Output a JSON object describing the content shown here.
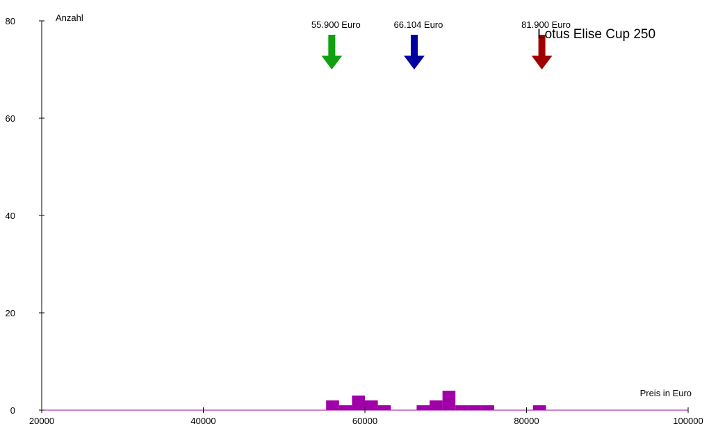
{
  "chart_data": {
    "type": "bar",
    "title": "Lotus Elise Cup 250",
    "xlabel": "Preis in Euro",
    "ylabel": "Anzahl",
    "xlim": [
      20000,
      100000
    ],
    "ylim": [
      0,
      80
    ],
    "x_ticks": [
      20000,
      40000,
      60000,
      80000,
      100000
    ],
    "y_ticks": [
      0,
      20,
      40,
      60,
      80
    ],
    "grid": false,
    "bin_width": 1600,
    "bar_color": "#a000a8",
    "axis_color": "#000000",
    "baseline_color": "#a000a8",
    "bins": [
      {
        "x": 56000,
        "value": 2
      },
      {
        "x": 57600,
        "value": 1
      },
      {
        "x": 59200,
        "value": 3
      },
      {
        "x": 60800,
        "value": 2
      },
      {
        "x": 62400,
        "value": 1
      },
      {
        "x": 67200,
        "value": 1
      },
      {
        "x": 68800,
        "value": 2
      },
      {
        "x": 70400,
        "value": 4
      },
      {
        "x": 72000,
        "value": 1
      },
      {
        "x": 73600,
        "value": 1
      },
      {
        "x": 75200,
        "value": 1
      },
      {
        "x": 81600,
        "value": 1
      }
    ],
    "markers": [
      {
        "label": "55.900 Euro",
        "value": 55900,
        "color": "#10a010"
      },
      {
        "label": "66.104 Euro",
        "value": 66104,
        "color": "#0000a0"
      },
      {
        "label": "81.900 Euro",
        "value": 81900,
        "color": "#a00000"
      }
    ]
  }
}
